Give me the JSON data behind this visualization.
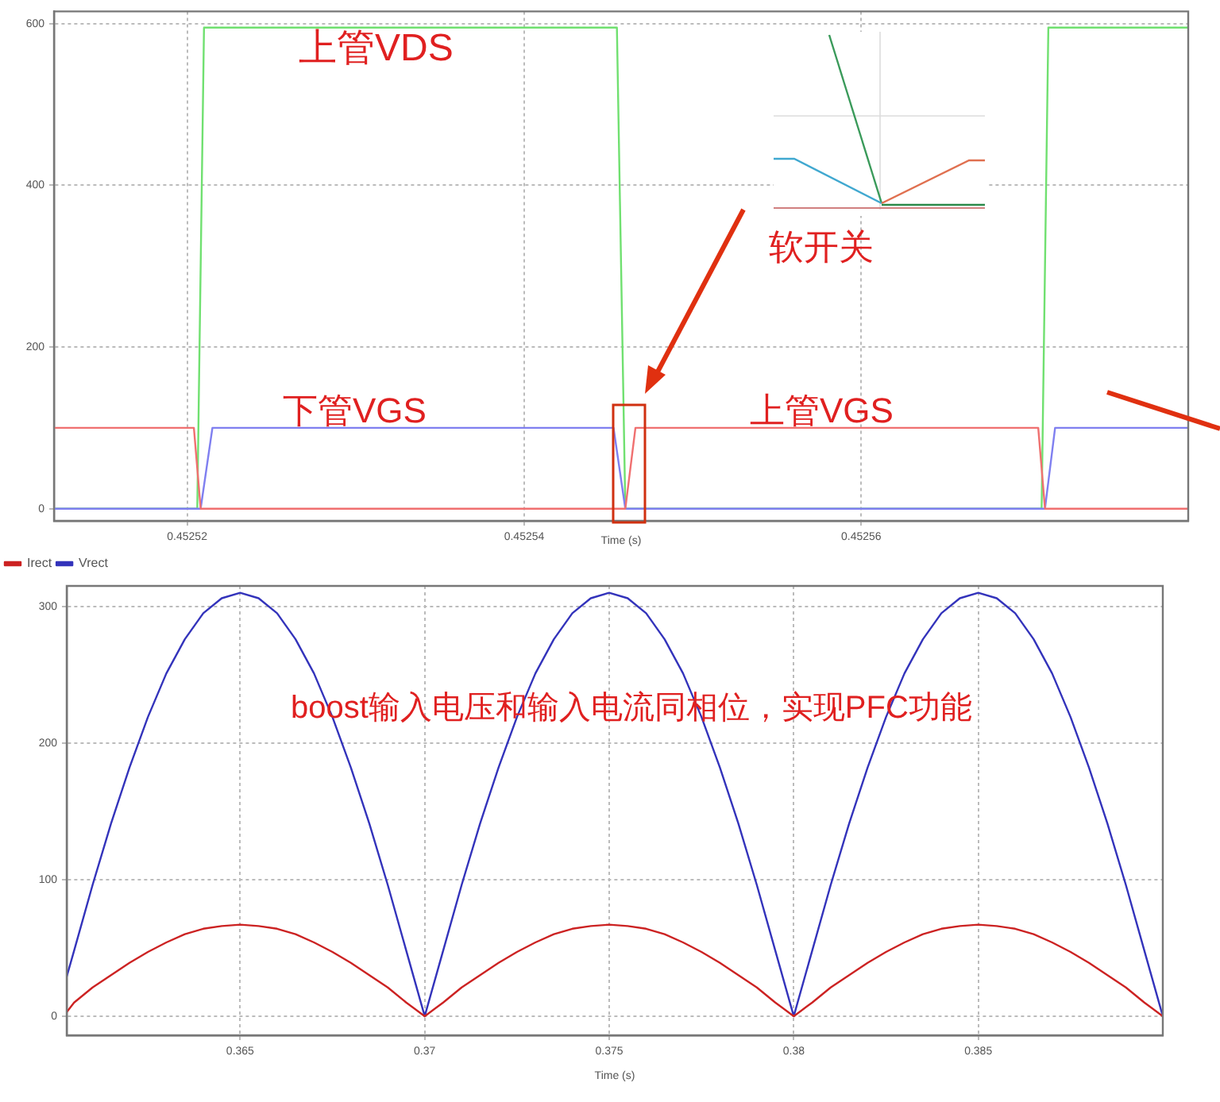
{
  "chart_data": [
    {
      "type": "line",
      "xlabel": "Time (s)",
      "xlim": [
        0.4525121,
        0.4525794
      ],
      "xticks": [
        0.45252,
        0.45254,
        0.45256
      ],
      "ylim": [
        -15,
        615
      ],
      "yticks": [
        0,
        200,
        400,
        600
      ],
      "grid": true,
      "legend": false,
      "marker": "none",
      "line_style": "solid",
      "annotations": [
        "上管VDS",
        "下管VGS",
        "上管VGS",
        "软开关"
      ],
      "series": [
        {
          "color": "#f07070",
          "x": [
            0.4525121,
            0.4525204,
            0.4525208,
            0.452546,
            0.4525466,
            0.4525705,
            0.4525709,
            0.4525794
          ],
          "values": [
            100,
            100,
            0,
            0,
            100,
            100,
            0,
            0
          ]
        },
        {
          "color": "#7f7ff0",
          "x": [
            0.4525121,
            0.4525208,
            0.4525215,
            0.4525453,
            0.452546,
            0.4525709,
            0.4525715,
            0.4525794
          ],
          "values": [
            0,
            0,
            100,
            100,
            0,
            0,
            100,
            100
          ]
        },
        {
          "color": "#70e070",
          "x": [
            0.4525121,
            0.4525206,
            0.452521,
            0.4525455,
            0.452546,
            0.4525707,
            0.4525711,
            0.4525794
          ],
          "values": [
            0,
            0,
            595,
            595,
            0,
            0,
            595,
            595
          ]
        }
      ]
    },
    {
      "type": "line",
      "xlabel": "Time (s)",
      "xlim": [
        0.3603,
        0.39
      ],
      "xticks": [
        0.365,
        0.37,
        0.375,
        0.38,
        0.385
      ],
      "ylim": [
        -14,
        315
      ],
      "yticks": [
        0,
        100,
        200,
        300
      ],
      "grid": true,
      "legend": "top left",
      "marker": "none",
      "line_style": "solid",
      "annotations": [
        "boost输入电压和输入电流同相位，实现PFC功能"
      ],
      "x": [
        0.3603,
        0.3605,
        0.361,
        0.3615,
        0.362,
        0.3625,
        0.363,
        0.3635,
        0.364,
        0.3645,
        0.365,
        0.3655,
        0.366,
        0.3665,
        0.367,
        0.3675,
        0.368,
        0.3685,
        0.369,
        0.3695,
        0.37,
        0.3705,
        0.371,
        0.3715,
        0.372,
        0.3725,
        0.373,
        0.3735,
        0.374,
        0.3745,
        0.375,
        0.3755,
        0.376,
        0.3765,
        0.377,
        0.3775,
        0.378,
        0.3785,
        0.379,
        0.3795,
        0.38,
        0.3805,
        0.381,
        0.3815,
        0.382,
        0.3825,
        0.383,
        0.3835,
        0.384,
        0.3845,
        0.385,
        0.3855,
        0.386,
        0.3865,
        0.387,
        0.3875,
        0.388,
        0.3885,
        0.389,
        0.3895,
        0.39
      ],
      "series": [
        {
          "name": "Irect",
          "color": "#cc2222",
          "values": [
            3,
            10,
            21,
            30,
            39,
            47,
            54,
            60,
            64,
            66,
            67,
            66,
            64,
            60,
            54,
            47,
            39,
            30,
            21,
            10,
            0,
            10,
            21,
            30,
            39,
            47,
            54,
            60,
            64,
            66,
            67,
            66,
            64,
            60,
            54,
            47,
            39,
            30,
            21,
            10,
            0,
            10,
            21,
            30,
            39,
            47,
            54,
            60,
            64,
            66,
            67,
            66,
            64,
            60,
            54,
            47,
            39,
            30,
            21,
            10,
            0
          ]
        },
        {
          "name": "Vrect",
          "color": "#3333bb",
          "values": [
            29,
            48,
            96,
            141,
            182,
            219,
            251,
            276,
            295,
            306,
            310,
            306,
            295,
            276,
            251,
            219,
            182,
            141,
            96,
            48,
            0,
            48,
            96,
            141,
            182,
            219,
            251,
            276,
            295,
            306,
            310,
            306,
            295,
            276,
            251,
            219,
            182,
            141,
            96,
            48,
            0,
            48,
            96,
            141,
            182,
            219,
            251,
            276,
            295,
            306,
            310,
            306,
            295,
            276,
            251,
            219,
            182,
            141,
            96,
            48,
            0
          ]
        }
      ]
    }
  ]
}
